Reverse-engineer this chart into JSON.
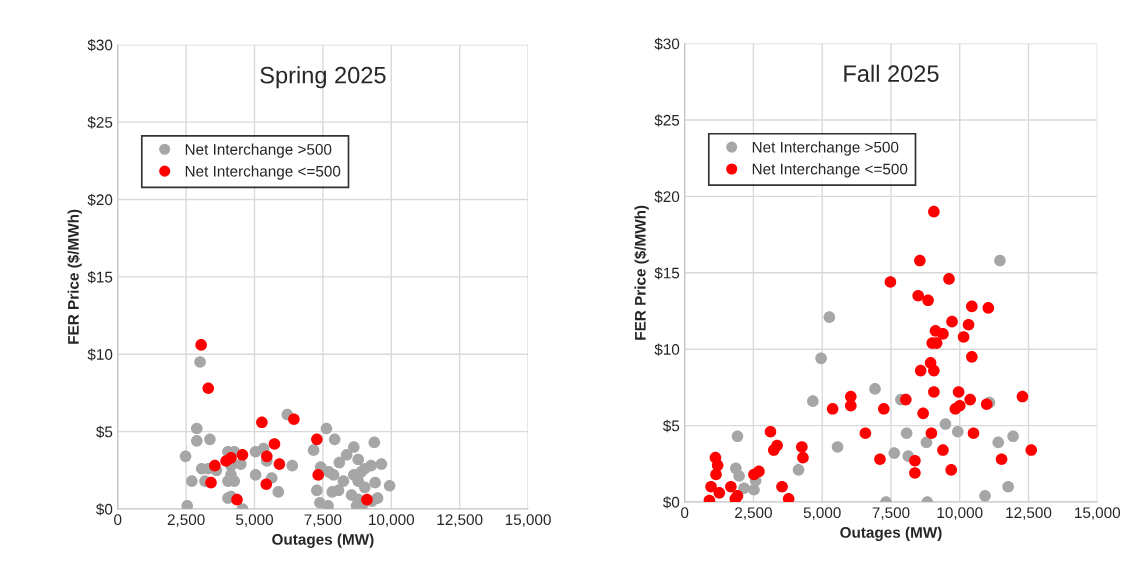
{
  "chart_data": [
    {
      "type": "scatter",
      "title": "Spring 2025",
      "xlabel": "Outages (MW)",
      "ylabel": "FER Price ($/MWh)",
      "xlim": [
        0,
        15000
      ],
      "ylim": [
        0,
        30
      ],
      "xticks": [
        0,
        {
          "value": 2500,
          "label": "2,500"
        },
        {
          "value": 5000,
          "label": "5,000"
        },
        {
          "value": 7500,
          "label": "7,500"
        },
        {
          "value": 10000,
          "label": "10,000"
        },
        {
          "value": 12500,
          "label": "12,500"
        },
        {
          "value": 15000,
          "label": "15,000"
        }
      ],
      "yticks": [
        {
          "value": 0,
          "label": "$0"
        },
        {
          "value": 5,
          "label": "$5"
        },
        {
          "value": 10,
          "label": "$10"
        },
        {
          "value": 15,
          "label": "$15"
        },
        {
          "value": 20,
          "label": "$20"
        },
        {
          "value": 25,
          "label": "$25"
        },
        {
          "value": 30,
          "label": "$30"
        }
      ],
      "grid": true,
      "legend": "top left",
      "marker": "circle",
      "series": [
        {
          "name": "Net Interchange >500",
          "color": "#a6a6a6",
          "x": [
            3010,
            2890,
            2890,
            3370,
            2480,
            2710,
            2540,
            3070,
            3310,
            3190,
            3610,
            4030,
            4260,
            4140,
            4140,
            4030,
            4260,
            4500,
            4030,
            4140,
            4560,
            5040,
            5330,
            5450,
            5040,
            5630,
            5870,
            6380,
            6200,
            7160,
            7630,
            7930,
            7420,
            7720,
            7890,
            7280,
            7390,
            7690,
            7840,
            8070,
            8100,
            8250,
            8370,
            8630,
            8790,
            8630,
            8900,
            9030,
            9260,
            8790,
            9030,
            8550,
            8790,
            8730,
            8960,
            9380,
            9640,
            9410,
            9500,
            9290,
            9940
          ],
          "values": [
            9.5,
            5.2,
            4.4,
            4.5,
            3.4,
            1.8,
            0.2,
            2.6,
            2.6,
            1.8,
            2.5,
            3.7,
            3.7,
            2.8,
            2.2,
            1.8,
            1.8,
            2.9,
            0.7,
            0.8,
            0,
            3.7,
            3.9,
            3.1,
            2.2,
            2.0,
            1.1,
            2.8,
            6.1,
            3.8,
            5.2,
            4.5,
            2.7,
            2.4,
            2.2,
            1.2,
            0.4,
            0.2,
            1.1,
            1.2,
            3.0,
            1.8,
            3.5,
            4.0,
            3.2,
            2.2,
            2.4,
            2.6,
            2.8,
            1.8,
            1.4,
            0.9,
            0.6,
            0.2,
            0.3,
            4.3,
            2.9,
            1.7,
            0.7,
            0.5,
            1.5
          ]
        },
        {
          "name": "Net Interchange <=500",
          "color": "#ff0000",
          "x": [
            3050,
            3310,
            3550,
            3410,
            3960,
            4140,
            4560,
            4360,
            5270,
            5730,
            5450,
            5910,
            5430,
            6440,
            7280,
            7330,
            9110
          ],
          "values": [
            10.6,
            7.8,
            2.8,
            1.7,
            3.1,
            3.3,
            3.5,
            0.6,
            5.6,
            4.2,
            3.4,
            2.9,
            1.6,
            5.8,
            4.5,
            2.2,
            0.6
          ]
        }
      ]
    },
    {
      "type": "scatter",
      "title": "Fall 2025",
      "xlabel": "Outages (MW)",
      "ylabel": "FER Price ($/MWh)",
      "xlim": [
        0,
        15000
      ],
      "ylim": [
        0,
        30
      ],
      "xticks": [
        0,
        {
          "value": 2500,
          "label": "2,500"
        },
        {
          "value": 5000,
          "label": "5,000"
        },
        {
          "value": 7500,
          "label": "7,500"
        },
        {
          "value": 10000,
          "label": "10,000"
        },
        {
          "value": 12500,
          "label": "12,500"
        },
        {
          "value": 15000,
          "label": "15,000"
        }
      ],
      "yticks": [
        {
          "value": 0,
          "label": "$0"
        },
        {
          "value": 5,
          "label": "$5"
        },
        {
          "value": 10,
          "label": "$10"
        },
        {
          "value": 15,
          "label": "$15"
        },
        {
          "value": 20,
          "label": "$20"
        },
        {
          "value": 25,
          "label": "$25"
        },
        {
          "value": 30,
          "label": "$30"
        }
      ],
      "grid": true,
      "legend": "top left",
      "marker": "circle",
      "series": [
        {
          "name": "Net Interchange >500",
          "color": "#a6a6a6",
          "x": [
            1920,
            1860,
            1980,
            2160,
            2520,
            2580,
            4140,
            5560,
            4660,
            6920,
            7320,
            7620,
            11460,
            5260,
            4960,
            7860,
            11080,
            9480,
            8070,
            9930,
            8790,
            11400,
            11940,
            8130,
            8820,
            10920,
            11760
          ],
          "values": [
            4.3,
            2.2,
            1.7,
            0.9,
            0.8,
            1.4,
            2.1,
            3.6,
            6.6,
            7.4,
            0,
            3.2,
            15.8,
            12.1,
            9.4,
            6.7,
            6.5,
            5.1,
            4.5,
            4.6,
            3.9,
            3.9,
            4.3,
            3.0,
            0,
            0.4,
            1.0
          ]
        },
        {
          "name": "Net Interchange <=500",
          "color": "#ff0000",
          "x": [
            1120,
            1200,
            1140,
            960,
            1260,
            900,
            1680,
            1920,
            1840,
            2520,
            2700,
            3120,
            3240,
            3360,
            3540,
            3780,
            4260,
            4300,
            5380,
            6040,
            6040,
            6570,
            7100,
            7240,
            9060,
            8550,
            7480,
            9610,
            8490,
            8850,
            10440,
            11040,
            9720,
            10320,
            9120,
            9390,
            10140,
            9000,
            9160,
            10440,
            8940,
            8580,
            9060,
            9060,
            9960,
            10380,
            10980,
            12280,
            8040,
            8670,
            9840,
            10000,
            8970,
            10500,
            8370,
            8370,
            9390,
            9690,
            11520,
            12600
          ],
          "values": [
            2.9,
            2.4,
            1.8,
            1.0,
            0.6,
            0.1,
            1.0,
            0.4,
            0.2,
            1.8,
            2.0,
            4.6,
            3.4,
            3.7,
            1.0,
            0.2,
            3.6,
            2.9,
            6.1,
            6.9,
            6.3,
            4.5,
            2.8,
            6.1,
            19.0,
            15.8,
            14.4,
            14.6,
            13.5,
            13.2,
            12.8,
            12.7,
            11.8,
            11.6,
            11.2,
            11.0,
            10.8,
            10.4,
            10.4,
            9.5,
            9.1,
            8.6,
            8.6,
            7.2,
            7.2,
            6.7,
            6.4,
            6.9,
            6.7,
            5.8,
            6.1,
            6.3,
            4.5,
            4.5,
            2.7,
            1.9,
            3.4,
            2.1,
            2.8,
            3.4
          ]
        }
      ]
    }
  ]
}
